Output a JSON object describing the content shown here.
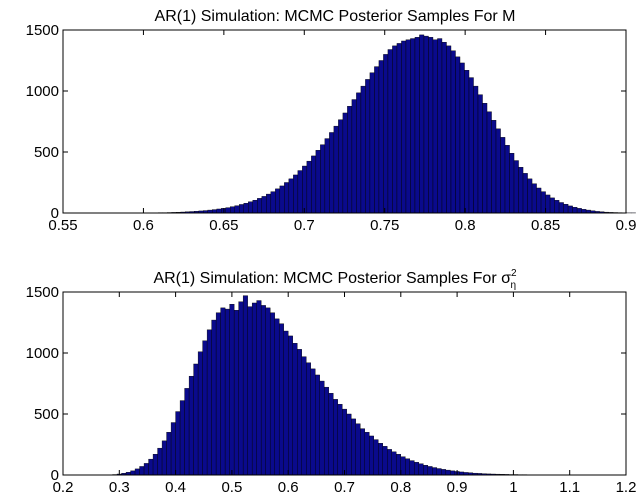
{
  "chart_data": [
    {
      "type": "histogram",
      "title_main": "AR(1) Simulation: MCMC Posterior Samples For M",
      "title_symbol": "",
      "title_sup": "",
      "title_sub": "",
      "xlim": [
        0.55,
        0.9
      ],
      "ylim": [
        0,
        1500
      ],
      "xticks": [
        "0.55",
        "0.6",
        "0.65",
        "0.7",
        "0.75",
        "0.8",
        "0.85",
        "0.9"
      ],
      "yticks": [
        "0",
        "500",
        "1000",
        "1500"
      ],
      "bin_start": 0.57,
      "bin_width": 0.0028,
      "values": [
        2,
        0,
        0,
        0,
        0,
        0,
        0,
        0,
        0,
        0,
        0,
        1,
        1,
        2,
        3,
        3,
        4,
        5,
        6,
        8,
        10,
        12,
        14,
        17,
        20,
        24,
        28,
        33,
        38,
        44,
        52,
        60,
        70,
        80,
        92,
        105,
        120,
        136,
        155,
        175,
        198,
        222,
        250,
        280,
        312,
        348,
        385,
        425,
        468,
        514,
        560,
        610,
        660,
        712,
        765,
        820,
        875,
        930,
        985,
        1040,
        1095,
        1150,
        1200,
        1250,
        1300,
        1340,
        1370,
        1390,
        1410,
        1420,
        1430,
        1440,
        1460,
        1450,
        1440,
        1420,
        1430,
        1400,
        1370,
        1330,
        1280,
        1230,
        1170,
        1110,
        1040,
        970,
        900,
        830,
        760,
        690,
        620,
        555,
        490,
        430,
        375,
        325,
        280,
        240,
        205,
        175,
        148,
        124,
        104,
        86,
        72,
        58,
        47,
        38,
        30,
        24,
        18,
        13,
        10,
        7,
        5,
        4,
        3,
        2,
        1,
        1
      ]
    },
    {
      "type": "histogram",
      "title_main": "AR(1) Simulation: MCMC Posterior Samples For ",
      "title_symbol": "σ",
      "title_sup": "2",
      "title_sub": "η",
      "xlim": [
        0.2,
        1.2
      ],
      "ylim": [
        0,
        1500
      ],
      "xticks": [
        "0.2",
        "0.3",
        "0.4",
        "0.5",
        "0.6",
        "0.7",
        "0.8",
        "0.9",
        "1",
        "1.1",
        "1.2"
      ],
      "yticks": [
        "0",
        "500",
        "1000",
        "1500"
      ],
      "bin_start": 0.28,
      "bin_width": 0.008,
      "values": [
        2,
        4,
        8,
        14,
        22,
        34,
        50,
        70,
        95,
        130,
        170,
        220,
        280,
        350,
        430,
        520,
        610,
        710,
        810,
        910,
        1010,
        1100,
        1190,
        1270,
        1330,
        1370,
        1360,
        1400,
        1350,
        1420,
        1470,
        1380,
        1410,
        1430,
        1390,
        1370,
        1330,
        1280,
        1240,
        1180,
        1140,
        1080,
        1030,
        970,
        920,
        870,
        820,
        770,
        720,
        670,
        620,
        580,
        540,
        500,
        460,
        420,
        380,
        350,
        320,
        290,
        260,
        235,
        210,
        190,
        170,
        150,
        133,
        118,
        104,
        92,
        80,
        70,
        61,
        53,
        46,
        40,
        34,
        29,
        25,
        21,
        18,
        15,
        13,
        11,
        9,
        8,
        7,
        6,
        5,
        4,
        4,
        3,
        3,
        2,
        2,
        1,
        1,
        1,
        1,
        1,
        0,
        0,
        0,
        0,
        0,
        0,
        0,
        0,
        0,
        0,
        0,
        0,
        0,
        0,
        0
      ]
    }
  ],
  "colors": {
    "bar_fill": "#0a0a8c",
    "bar_edge": "#000000",
    "axis": "#000000"
  }
}
